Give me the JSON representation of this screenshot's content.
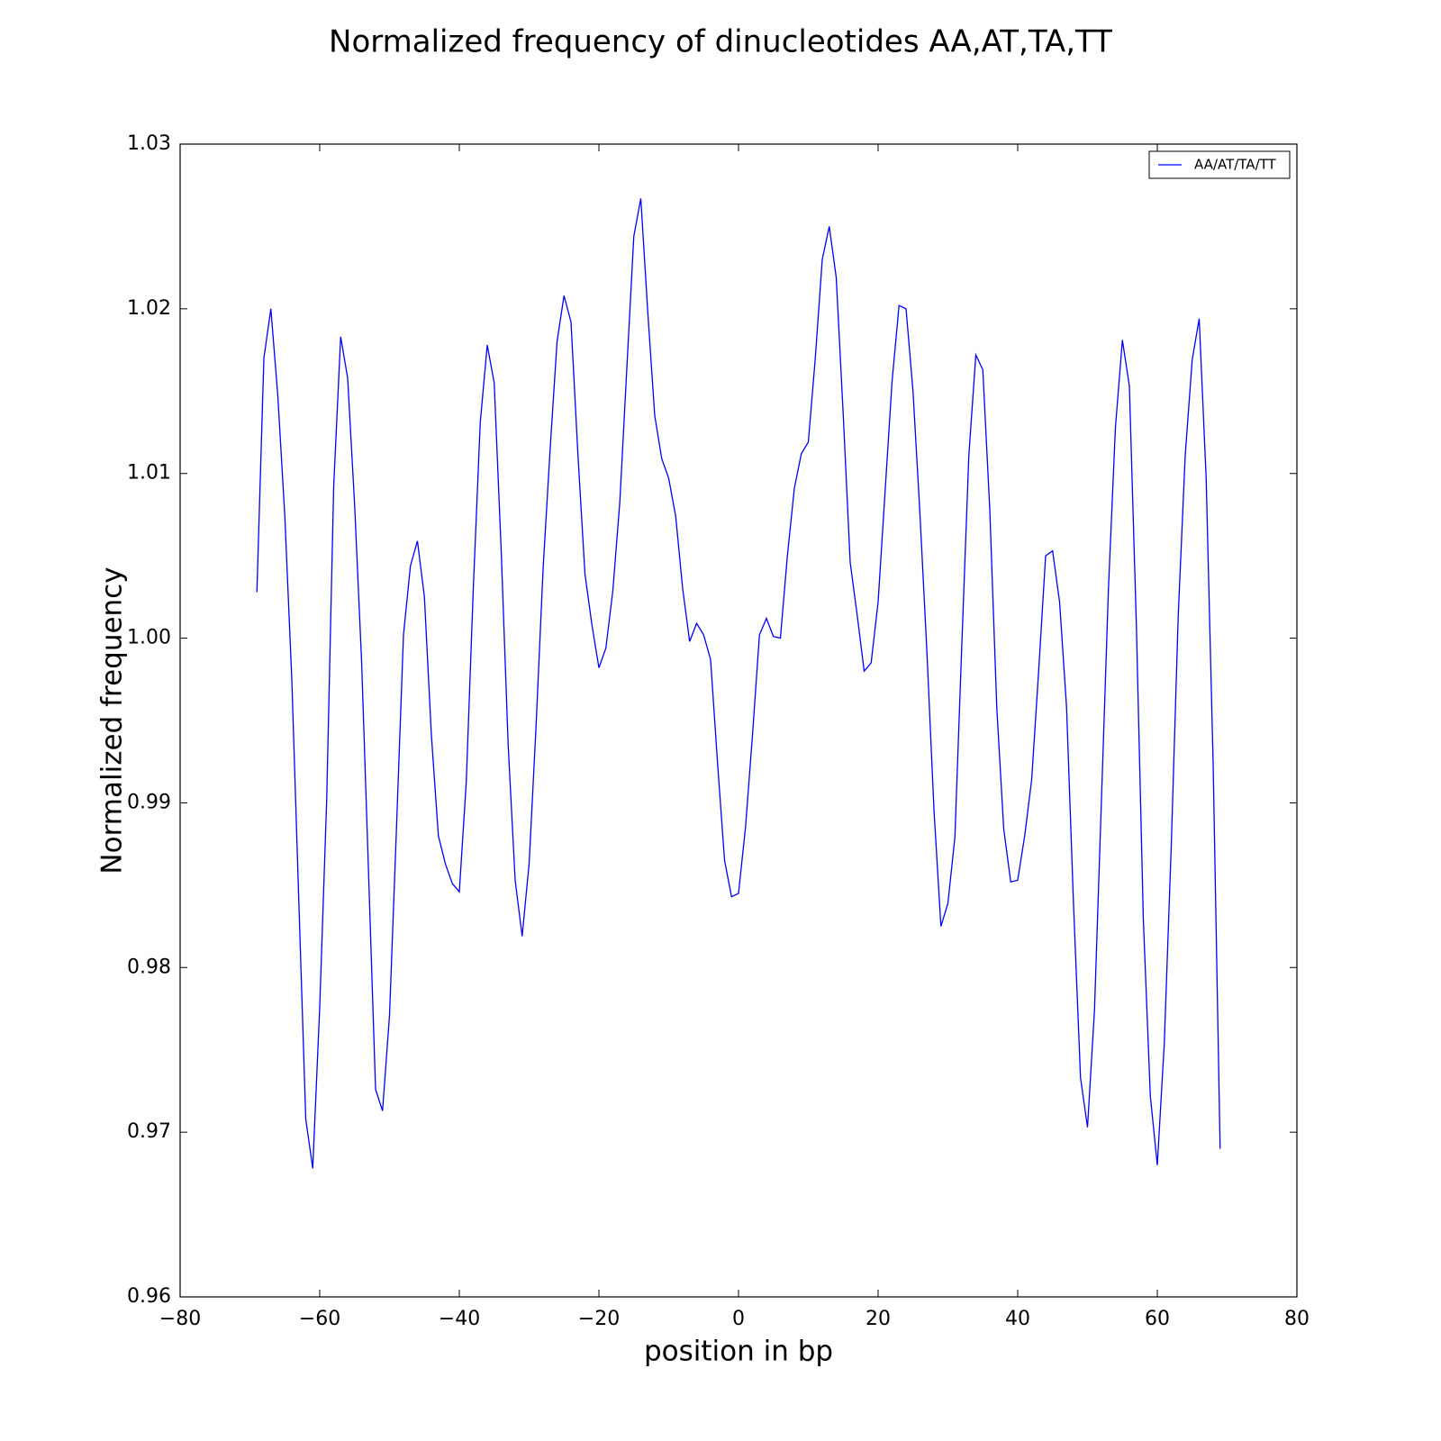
{
  "chart_data": {
    "type": "line",
    "title": "Normalized frequency of dinucleotides AA,AT,TA,TT",
    "x_label": "position in bp",
    "y_label": "Normalized frequency",
    "x": [
      -69,
      -68,
      -67,
      -66,
      -65,
      -64,
      -63,
      -62,
      -61,
      -60,
      -59,
      -58,
      -57,
      -56,
      -55,
      -54,
      -53,
      -52,
      -51,
      -50,
      -49,
      -48,
      -47,
      -46,
      -45,
      -44,
      -43,
      -42,
      -41,
      -40,
      -39,
      -38,
      -37,
      -36,
      -35,
      -34,
      -33,
      -32,
      -31,
      -30,
      -29,
      -28,
      -27,
      -26,
      -25,
      -24,
      -23,
      -22,
      -21,
      -20,
      -19,
      -18,
      -17,
      -16,
      -15,
      -14,
      -13,
      -12,
      -11,
      -10,
      -9,
      -8,
      -7,
      -6,
      -5,
      -4,
      -3,
      -2,
      -1,
      0,
      1,
      2,
      3,
      4,
      5,
      6,
      7,
      8,
      9,
      10,
      11,
      12,
      13,
      14,
      15,
      16,
      17,
      18,
      19,
      20,
      21,
      22,
      23,
      24,
      25,
      26,
      27,
      28,
      29,
      30,
      31,
      32,
      33,
      34,
      35,
      36,
      37,
      38,
      39,
      40,
      41,
      42,
      43,
      44,
      45,
      46,
      47,
      48,
      49,
      50,
      51,
      52,
      53,
      54,
      55,
      56,
      57,
      58,
      59,
      60,
      61,
      62,
      63,
      64,
      65,
      66,
      67,
      68,
      69
    ],
    "series": [
      {
        "name": "AA/AT/TA/TT",
        "color": "#0000ff",
        "values": [
          1.0028,
          1.017,
          1.02,
          1.0147,
          1.0074,
          0.9975,
          0.9841,
          0.9708,
          0.9678,
          0.9776,
          0.9902,
          1.0092,
          1.0183,
          1.0158,
          1.0081,
          0.9986,
          0.9857,
          0.9726,
          0.9713,
          0.9771,
          0.9885,
          1.0002,
          1.0044,
          1.0059,
          1.0025,
          0.9941,
          0.988,
          0.9863,
          0.9851,
          0.9846,
          0.9913,
          1.003,
          1.0131,
          1.0178,
          1.0155,
          1.0053,
          0.9935,
          0.9853,
          0.9819,
          0.9863,
          0.9947,
          1.0042,
          1.0114,
          1.018,
          1.0208,
          1.0192,
          1.0111,
          1.0039,
          1.0008,
          0.9982,
          0.9994,
          1.0029,
          1.0083,
          1.0164,
          1.0244,
          1.0267,
          1.0198,
          1.0135,
          1.0109,
          1.0097,
          1.0074,
          1.003,
          0.9998,
          1.0009,
          1.0002,
          0.9987,
          0.9924,
          0.9865,
          0.9843,
          0.9845,
          0.9885,
          0.9941,
          1.0002,
          1.0012,
          1.0001,
          1.0,
          1.005,
          1.0091,
          1.0112,
          1.0119,
          1.017,
          1.023,
          1.025,
          1.0219,
          1.0136,
          1.0046,
          1.0014,
          0.998,
          0.9985,
          1.0022,
          1.0089,
          1.0156,
          1.0202,
          1.02,
          1.015,
          1.0075,
          0.9991,
          0.9896,
          0.9825,
          0.9839,
          0.9879,
          0.9997,
          1.0111,
          1.0172,
          1.0163,
          1.0078,
          0.9958,
          0.9884,
          0.9852,
          0.9853,
          0.988,
          0.9914,
          0.998,
          1.005,
          1.0053,
          1.0022,
          0.9958,
          0.9838,
          0.9733,
          0.9703,
          0.9774,
          0.9902,
          1.003,
          1.0128,
          1.0181,
          1.0153,
          1.0008,
          0.9829,
          0.9722,
          0.968,
          0.9754,
          0.9874,
          1.0014,
          1.0111,
          1.0169,
          1.0194,
          1.0097,
          0.9924,
          0.969
        ]
      }
    ],
    "xlim": [
      -80,
      80
    ],
    "ylim": [
      0.96,
      1.03
    ],
    "xticks": [
      {
        "value": -80,
        "label": "−80"
      },
      {
        "value": -60,
        "label": "−60"
      },
      {
        "value": -40,
        "label": "−40"
      },
      {
        "value": -20,
        "label": "−20"
      },
      0,
      20,
      40,
      60,
      80
    ],
    "yticks": [
      0.96,
      0.97,
      0.98,
      0.99,
      {
        "value": 1.0,
        "label": "1.00"
      },
      1.01,
      1.02,
      1.03
    ],
    "legend": "upper right"
  }
}
